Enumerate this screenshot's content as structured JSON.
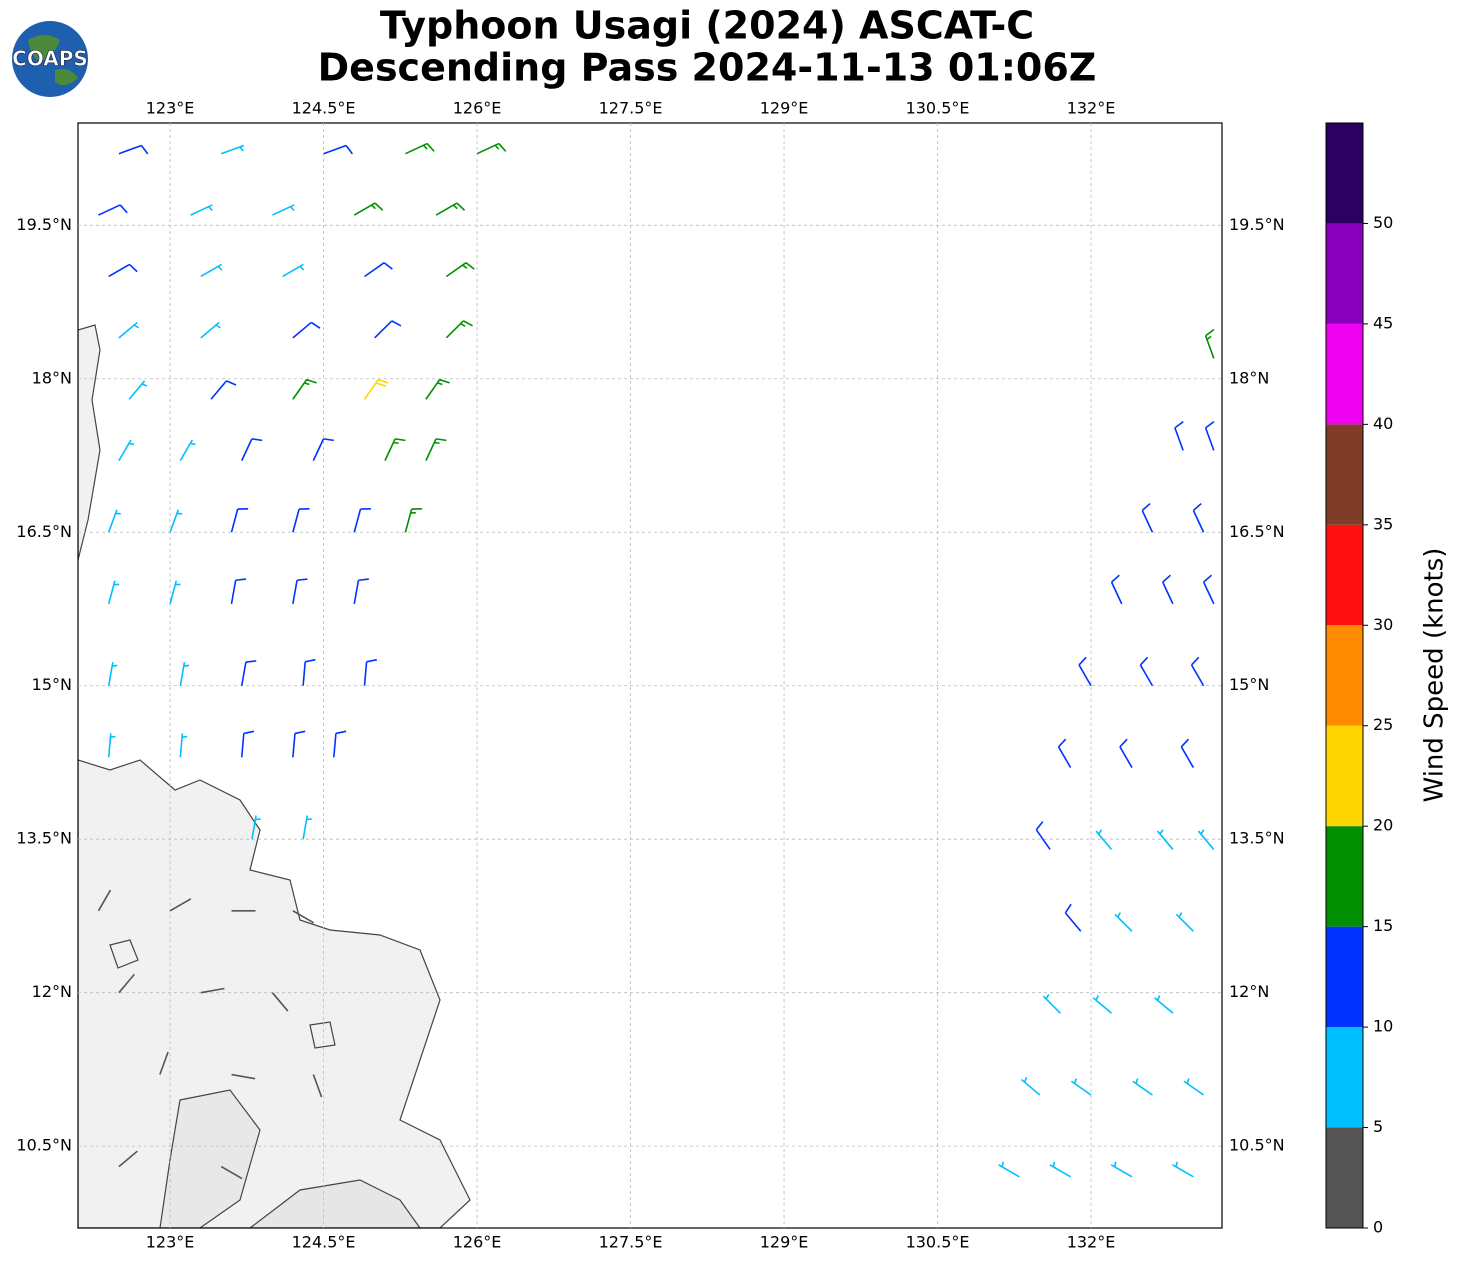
{
  "chart_data": {
    "type": "wind_barbs",
    "title": "Typhoon Usagi (2024) ASCAT-C",
    "subtitle": "Descending Pass 2024-11-13 01:06Z",
    "logo": "COAPS",
    "xlim": [
      122.1,
      133.28
    ],
    "ylim": [
      9.7,
      20.5
    ],
    "xticks": [
      {
        "value": 123,
        "label": "123°E"
      },
      {
        "value": 124.5,
        "label": "124.5°E"
      },
      {
        "value": 126,
        "label": "126°E"
      },
      {
        "value": 127.5,
        "label": "127.5°E"
      },
      {
        "value": 129,
        "label": "129°E"
      },
      {
        "value": 130.5,
        "label": "130.5°E"
      },
      {
        "value": 132,
        "label": "132°E"
      }
    ],
    "yticks": [
      {
        "value": 10.5,
        "label": "10.5°N"
      },
      {
        "value": 12,
        "label": "12°N"
      },
      {
        "value": 13.5,
        "label": "13.5°N"
      },
      {
        "value": 15,
        "label": "15°N"
      },
      {
        "value": 16.5,
        "label": "16.5°N"
      },
      {
        "value": 18,
        "label": "18°N"
      },
      {
        "value": 19.5,
        "label": "19.5°N"
      }
    ],
    "grid": true,
    "colorbar": {
      "label": "Wind Speed (knots)",
      "lim": [
        0,
        55
      ],
      "ticks": [
        0,
        5,
        10,
        15,
        20,
        25,
        30,
        35,
        40,
        45,
        50
      ],
      "colors": [
        "#555555",
        "#00bfff",
        "#0033ff",
        "#009000",
        "#ffd700",
        "#ff8c00",
        "#ff1010",
        "#803c28",
        "#f000f0",
        "#8800bb",
        "#2a0060"
      ]
    },
    "barbs": {
      "lon": [
        122.5,
        123.5,
        124.5,
        125.3,
        126.0,
        122.3,
        123.2,
        124.0,
        124.8,
        125.6,
        122.4,
        123.3,
        124.1,
        124.9,
        125.7,
        122.5,
        123.3,
        124.2,
        125.0,
        125.7,
        122.6,
        123.4,
        124.2,
        124.9,
        125.5,
        122.5,
        123.1,
        123.7,
        124.4,
        125.1,
        125.5,
        122.4,
        123.0,
        123.6,
        124.2,
        124.8,
        125.3,
        122.4,
        123.0,
        123.6,
        124.2,
        124.8,
        122.4,
        123.1,
        123.7,
        124.3,
        124.9,
        122.4,
        123.1,
        123.7,
        124.2,
        124.6,
        123.8,
        124.3,
        122.3,
        123.0,
        123.6,
        124.2,
        122.5,
        123.3,
        124.0,
        122.9,
        123.6,
        124.4,
        122.5,
        123.5,
        133.2,
        132.9,
        133.2,
        132.6,
        133.1,
        132.3,
        132.8,
        133.2,
        132.0,
        132.6,
        133.1,
        131.8,
        132.4,
        133.0,
        131.6,
        132.2,
        132.8,
        133.2,
        131.9,
        132.4,
        133.0,
        131.7,
        132.2,
        132.8,
        131.5,
        132.0,
        132.6,
        133.1,
        131.3,
        131.8,
        132.4,
        133.0
      ],
      "lat": [
        20.2,
        20.2,
        20.2,
        20.2,
        20.2,
        19.6,
        19.6,
        19.6,
        19.6,
        19.6,
        19.0,
        19.0,
        19.0,
        19.0,
        19.0,
        18.4,
        18.4,
        18.4,
        18.4,
        18.4,
        17.8,
        17.8,
        17.8,
        17.8,
        17.8,
        17.2,
        17.2,
        17.2,
        17.2,
        17.2,
        17.2,
        16.5,
        16.5,
        16.5,
        16.5,
        16.5,
        16.5,
        15.8,
        15.8,
        15.8,
        15.8,
        15.8,
        15.0,
        15.0,
        15.0,
        15.0,
        15.0,
        14.3,
        14.3,
        14.3,
        14.3,
        14.3,
        13.5,
        13.5,
        12.8,
        12.8,
        12.8,
        12.8,
        12.0,
        12.0,
        12.0,
        11.2,
        11.2,
        11.2,
        10.3,
        10.3,
        18.2,
        17.3,
        17.3,
        16.5,
        16.5,
        15.8,
        15.8,
        15.8,
        15.0,
        15.0,
        15.0,
        14.2,
        14.2,
        14.2,
        13.4,
        13.4,
        13.4,
        13.4,
        12.6,
        12.6,
        12.6,
        11.8,
        11.8,
        11.8,
        11.0,
        11.0,
        11.0,
        11.0,
        10.2,
        10.2,
        10.2,
        10.2
      ],
      "speed": [
        12,
        8,
        12,
        17,
        17,
        12,
        8,
        8,
        17,
        17,
        12,
        8,
        8,
        12,
        17,
        8,
        8,
        12,
        12,
        17,
        8,
        12,
        17,
        22,
        17,
        8,
        8,
        12,
        12,
        17,
        17,
        8,
        8,
        12,
        12,
        12,
        17,
        8,
        8,
        12,
        12,
        12,
        8,
        8,
        12,
        12,
        12,
        8,
        8,
        12,
        12,
        12,
        8,
        8,
        3,
        3,
        3,
        3,
        3,
        3,
        3,
        3,
        3,
        3,
        3,
        3,
        17,
        12,
        12,
        12,
        12,
        12,
        12,
        12,
        12,
        12,
        12,
        12,
        12,
        12,
        12,
        8,
        8,
        8,
        12,
        8,
        8,
        8,
        8,
        8,
        8,
        8,
        8,
        8,
        8,
        8,
        8,
        8
      ],
      "direction": [
        70,
        70,
        70,
        65,
        65,
        65,
        65,
        65,
        60,
        60,
        60,
        60,
        60,
        55,
        55,
        50,
        50,
        50,
        45,
        45,
        40,
        40,
        35,
        35,
        35,
        30,
        30,
        25,
        25,
        25,
        25,
        20,
        20,
        15,
        15,
        15,
        15,
        15,
        15,
        10,
        10,
        10,
        10,
        10,
        10,
        5,
        5,
        5,
        5,
        5,
        5,
        5,
        10,
        10,
        30,
        60,
        90,
        120,
        40,
        80,
        140,
        20,
        100,
        160,
        50,
        120,
        340,
        340,
        340,
        335,
        335,
        335,
        335,
        335,
        330,
        330,
        330,
        330,
        330,
        330,
        325,
        320,
        320,
        320,
        320,
        315,
        315,
        315,
        310,
        310,
        310,
        305,
        305,
        305,
        300,
        300,
        300,
        300
      ]
    }
  }
}
